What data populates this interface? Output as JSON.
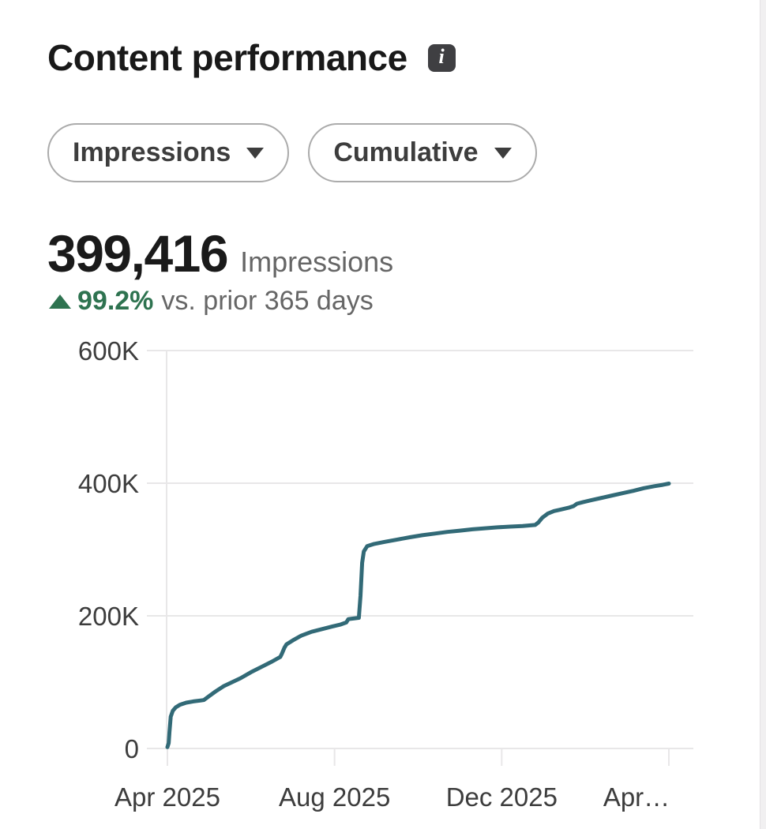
{
  "header": {
    "title": "Content performance",
    "info_icon_glyph": "i"
  },
  "filters": [
    {
      "label": "Impressions"
    },
    {
      "label": "Cumulative"
    }
  ],
  "metric": {
    "value": "399,416",
    "unit": "Impressions",
    "delta_direction": "up",
    "delta_pct": "99.2%",
    "delta_caption": "vs. prior 365 days",
    "delta_color": "#2e7350"
  },
  "chart_data": {
    "type": "line",
    "title": "Cumulative impressions, Apr 2025 - Apr 2026",
    "xlabel": "",
    "ylabel": "",
    "xlim": [
      0,
      12
    ],
    "ylim": [
      0,
      600000
    ],
    "grid": true,
    "grid_color": "#e8e7e8",
    "axis_label_color": "#3d3d3d",
    "legend": "none",
    "x_ticks": [
      {
        "label": "Apr 2025",
        "month": 0
      },
      {
        "label": "Aug 2025",
        "month": 4
      },
      {
        "label": "Dec 2025",
        "month": 8
      },
      {
        "label": "Apr…",
        "month": 12
      }
    ],
    "y_ticks": [
      {
        "label": "0",
        "value": 0
      },
      {
        "label": "200K",
        "value": 200000
      },
      {
        "label": "400K",
        "value": 400000
      },
      {
        "label": "600K",
        "value": 600000
      }
    ],
    "series": [
      {
        "name": "Impressions",
        "color": "#326a77",
        "points": [
          [
            0,
            2000
          ],
          [
            0.03,
            8000
          ],
          [
            0.05,
            25000
          ],
          [
            0.08,
            48000
          ],
          [
            0.13,
            57000
          ],
          [
            0.2,
            62000
          ],
          [
            0.3,
            66000
          ],
          [
            0.45,
            69000
          ],
          [
            0.62,
            71000
          ],
          [
            0.87,
            73000
          ],
          [
            1.0,
            79000
          ],
          [
            1.15,
            86000
          ],
          [
            1.35,
            94000
          ],
          [
            1.55,
            100000
          ],
          [
            1.75,
            106000
          ],
          [
            2.0,
            115000
          ],
          [
            2.25,
            123000
          ],
          [
            2.5,
            131000
          ],
          [
            2.7,
            138000
          ],
          [
            2.74,
            143000
          ],
          [
            2.8,
            152000
          ],
          [
            2.85,
            157000
          ],
          [
            3.0,
            163000
          ],
          [
            3.2,
            170000
          ],
          [
            3.45,
            176000
          ],
          [
            3.7,
            180000
          ],
          [
            3.95,
            184000
          ],
          [
            4.15,
            187000
          ],
          [
            4.28,
            190000
          ],
          [
            4.33,
            195000
          ],
          [
            4.45,
            196000
          ],
          [
            4.58,
            197000
          ],
          [
            4.62,
            230000
          ],
          [
            4.66,
            280000
          ],
          [
            4.7,
            297000
          ],
          [
            4.78,
            305000
          ],
          [
            4.95,
            308500
          ],
          [
            5.2,
            311500
          ],
          [
            5.5,
            315000
          ],
          [
            5.8,
            318500
          ],
          [
            6.1,
            321500
          ],
          [
            6.4,
            324000
          ],
          [
            6.7,
            326500
          ],
          [
            7.0,
            328500
          ],
          [
            7.3,
            330500
          ],
          [
            7.6,
            332000
          ],
          [
            7.9,
            333500
          ],
          [
            8.2,
            334500
          ],
          [
            8.5,
            335500
          ],
          [
            8.8,
            337000
          ],
          [
            8.88,
            341000
          ],
          [
            8.97,
            348000
          ],
          [
            9.1,
            354000
          ],
          [
            9.25,
            358000
          ],
          [
            9.4,
            360000
          ],
          [
            9.6,
            363000
          ],
          [
            9.72,
            365500
          ],
          [
            9.8,
            369000
          ],
          [
            9.95,
            371500
          ],
          [
            10.15,
            374500
          ],
          [
            10.4,
            378000
          ],
          [
            10.65,
            381500
          ],
          [
            10.9,
            385000
          ],
          [
            11.15,
            388500
          ],
          [
            11.4,
            392500
          ],
          [
            11.65,
            395500
          ],
          [
            11.85,
            397500
          ],
          [
            12,
            399416
          ]
        ]
      }
    ]
  }
}
